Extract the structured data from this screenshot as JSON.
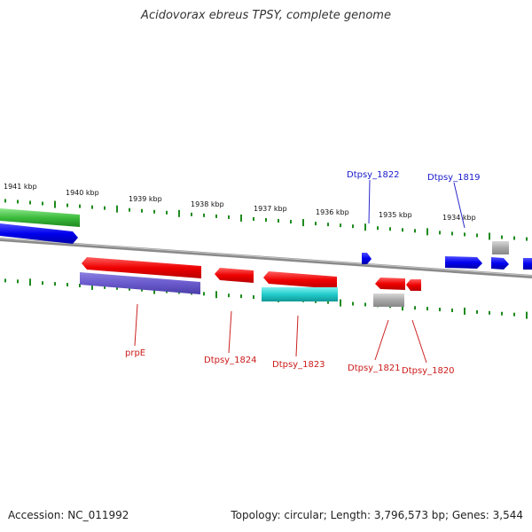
{
  "title": "Acidovorax ebreus TPSY, complete genome",
  "footer": {
    "accession": "Accession: NC_011992",
    "topology": "Topology: circular; Length: 3,796,573 bp; Genes: 3,544"
  },
  "colors": {
    "backbone": "#8a8a8a",
    "tick": "#1e8a1e",
    "forward_label": "#1a1acc",
    "reverse_label": "#cc1a1a"
  },
  "scale_labels": [
    "1941 kbp",
    "1940 kbp",
    "1939 kbp",
    "1938 kbp",
    "1937 kbp",
    "1936 kbp",
    "1935 kbp",
    "1934 kbp"
  ],
  "gene_labels": [
    {
      "text": "Dtpsy_1822",
      "strand": "forward"
    },
    {
      "text": "Dtpsy_1819",
      "strand": "forward"
    },
    {
      "text": "prpE",
      "strand": "reverse"
    },
    {
      "text": "Dtpsy_1824",
      "strand": "reverse"
    },
    {
      "text": "Dtpsy_1823",
      "strand": "reverse"
    },
    {
      "text": "Dtpsy_1821",
      "strand": "reverse"
    },
    {
      "text": "Dtpsy_1820",
      "strand": "reverse"
    }
  ]
}
